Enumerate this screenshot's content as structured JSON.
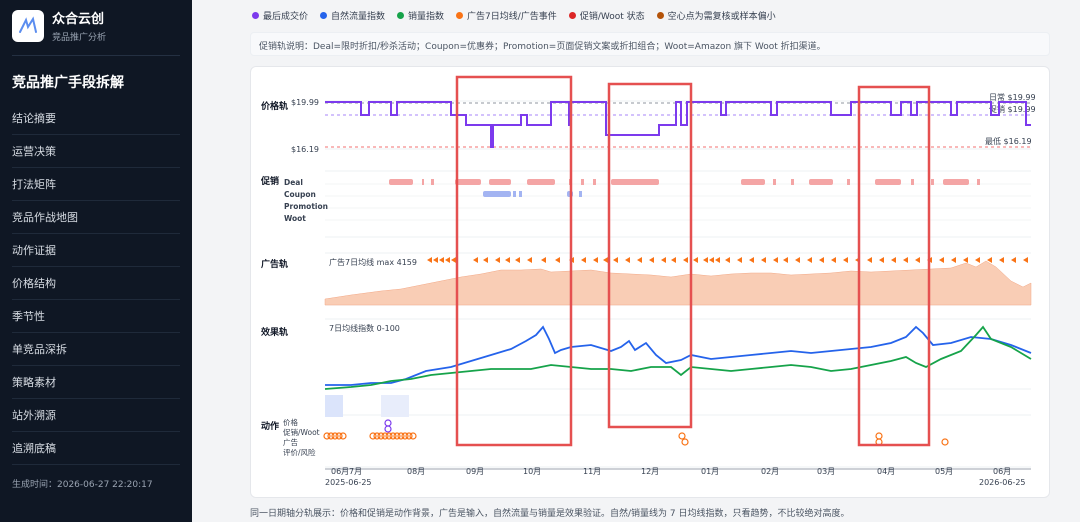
{
  "sidebar": {
    "brand_title": "众合云创",
    "brand_sub": "竞品推广分析",
    "section_title": "竞品推广手段拆解",
    "items": [
      {
        "label": "结论摘要"
      },
      {
        "label": "运营决策"
      },
      {
        "label": "打法矩阵"
      },
      {
        "label": "竞品作战地图"
      },
      {
        "label": "动作证据"
      },
      {
        "label": "价格结构"
      },
      {
        "label": "季节性"
      },
      {
        "label": "单竞品深拆"
      },
      {
        "label": "策略素材"
      },
      {
        "label": "站外溯源"
      },
      {
        "label": "追溯底稿"
      }
    ],
    "generated": "生成时间：2026-06-27 22:20:17"
  },
  "legend": [
    {
      "label": "最后成交价",
      "color": "#7c3aed"
    },
    {
      "label": "自然流量指数",
      "color": "#2563eb"
    },
    {
      "label": "销量指数",
      "color": "#16a34a"
    },
    {
      "label": "广告7日均线/广告事件",
      "color": "#f97316"
    },
    {
      "label": "促销/Woot 状态",
      "color": "#dc2626"
    },
    {
      "label": "空心点为需复核或样本偏小",
      "color": "#b45309"
    }
  ],
  "promo_note": "促销轨说明：Deal=限时折扣/秒杀活动；Coupon=优惠券；Promotion=页面促销文案或折扣组合；Woot=Amazon 旗下 Woot 折扣渠道。",
  "chart": {
    "tracks": {
      "price": "价格轨",
      "promo": "促销",
      "ads": "广告轨",
      "effect": "效果轨",
      "action": "动作"
    },
    "price_labels": {
      "top": "$19.99",
      "bottom": "$16.19",
      "daily": "日常 $19.99",
      "promo": "促销 $19.99",
      "lowest": "最低 $16.19"
    },
    "promo_rows": [
      "Deal",
      "Coupon",
      "Promotion",
      "Woot"
    ],
    "ad_label": "广告7日均线 max 4159",
    "effect_label": "7日均线指数 0-100",
    "action_rows": [
      "价格",
      "促销/Woot",
      "广告",
      "评价/风险"
    ],
    "x_ticks": [
      "06月",
      "7月",
      "08月",
      "09月",
      "10月",
      "11月",
      "12月",
      "01月",
      "02月",
      "03月",
      "04月",
      "05月",
      "06月"
    ],
    "date_start": "2025-06-25",
    "date_end": "2026-06-25"
  },
  "footer_note": "同一日期轴分轨展示：价格和促销是动作背景，广告是输入，自然流量与销量是效果验证。自然/销量线为 7 日均线指数，只看趋势，不比较绝对高度。"
}
